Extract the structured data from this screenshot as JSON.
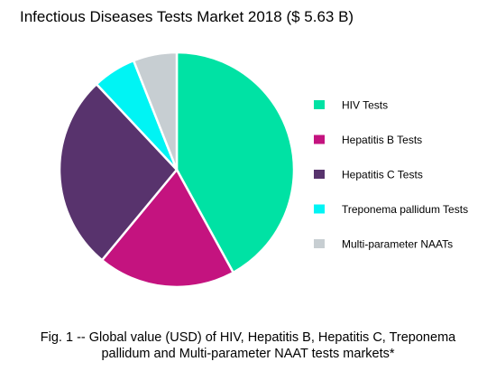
{
  "chart_data": {
    "type": "pie",
    "title": "Infectious Diseases Tests Market 2018 ($ 5.63 B)",
    "categories": [
      "HIV Tests",
      "Hepatitis B Tests",
      "Hepatitis C Tests",
      "Treponema pallidum Tests",
      "Multi-parameter NAATs"
    ],
    "values": [
      42,
      19,
      27,
      6,
      6
    ],
    "unit": "%",
    "colors": [
      "#00e2a4",
      "#c4137f",
      "#58336d",
      "#00f4f4",
      "#c7ced2"
    ],
    "start_angle_deg": 0,
    "direction": "clockwise",
    "legend_position": "right"
  },
  "caption": {
    "line1": "Fig. 1 -- Global value (USD) of HIV, Hepatitis B, Hepatitis C, Treponema",
    "line2": "pallidum and Multi-parameter NAAT tests markets*"
  }
}
